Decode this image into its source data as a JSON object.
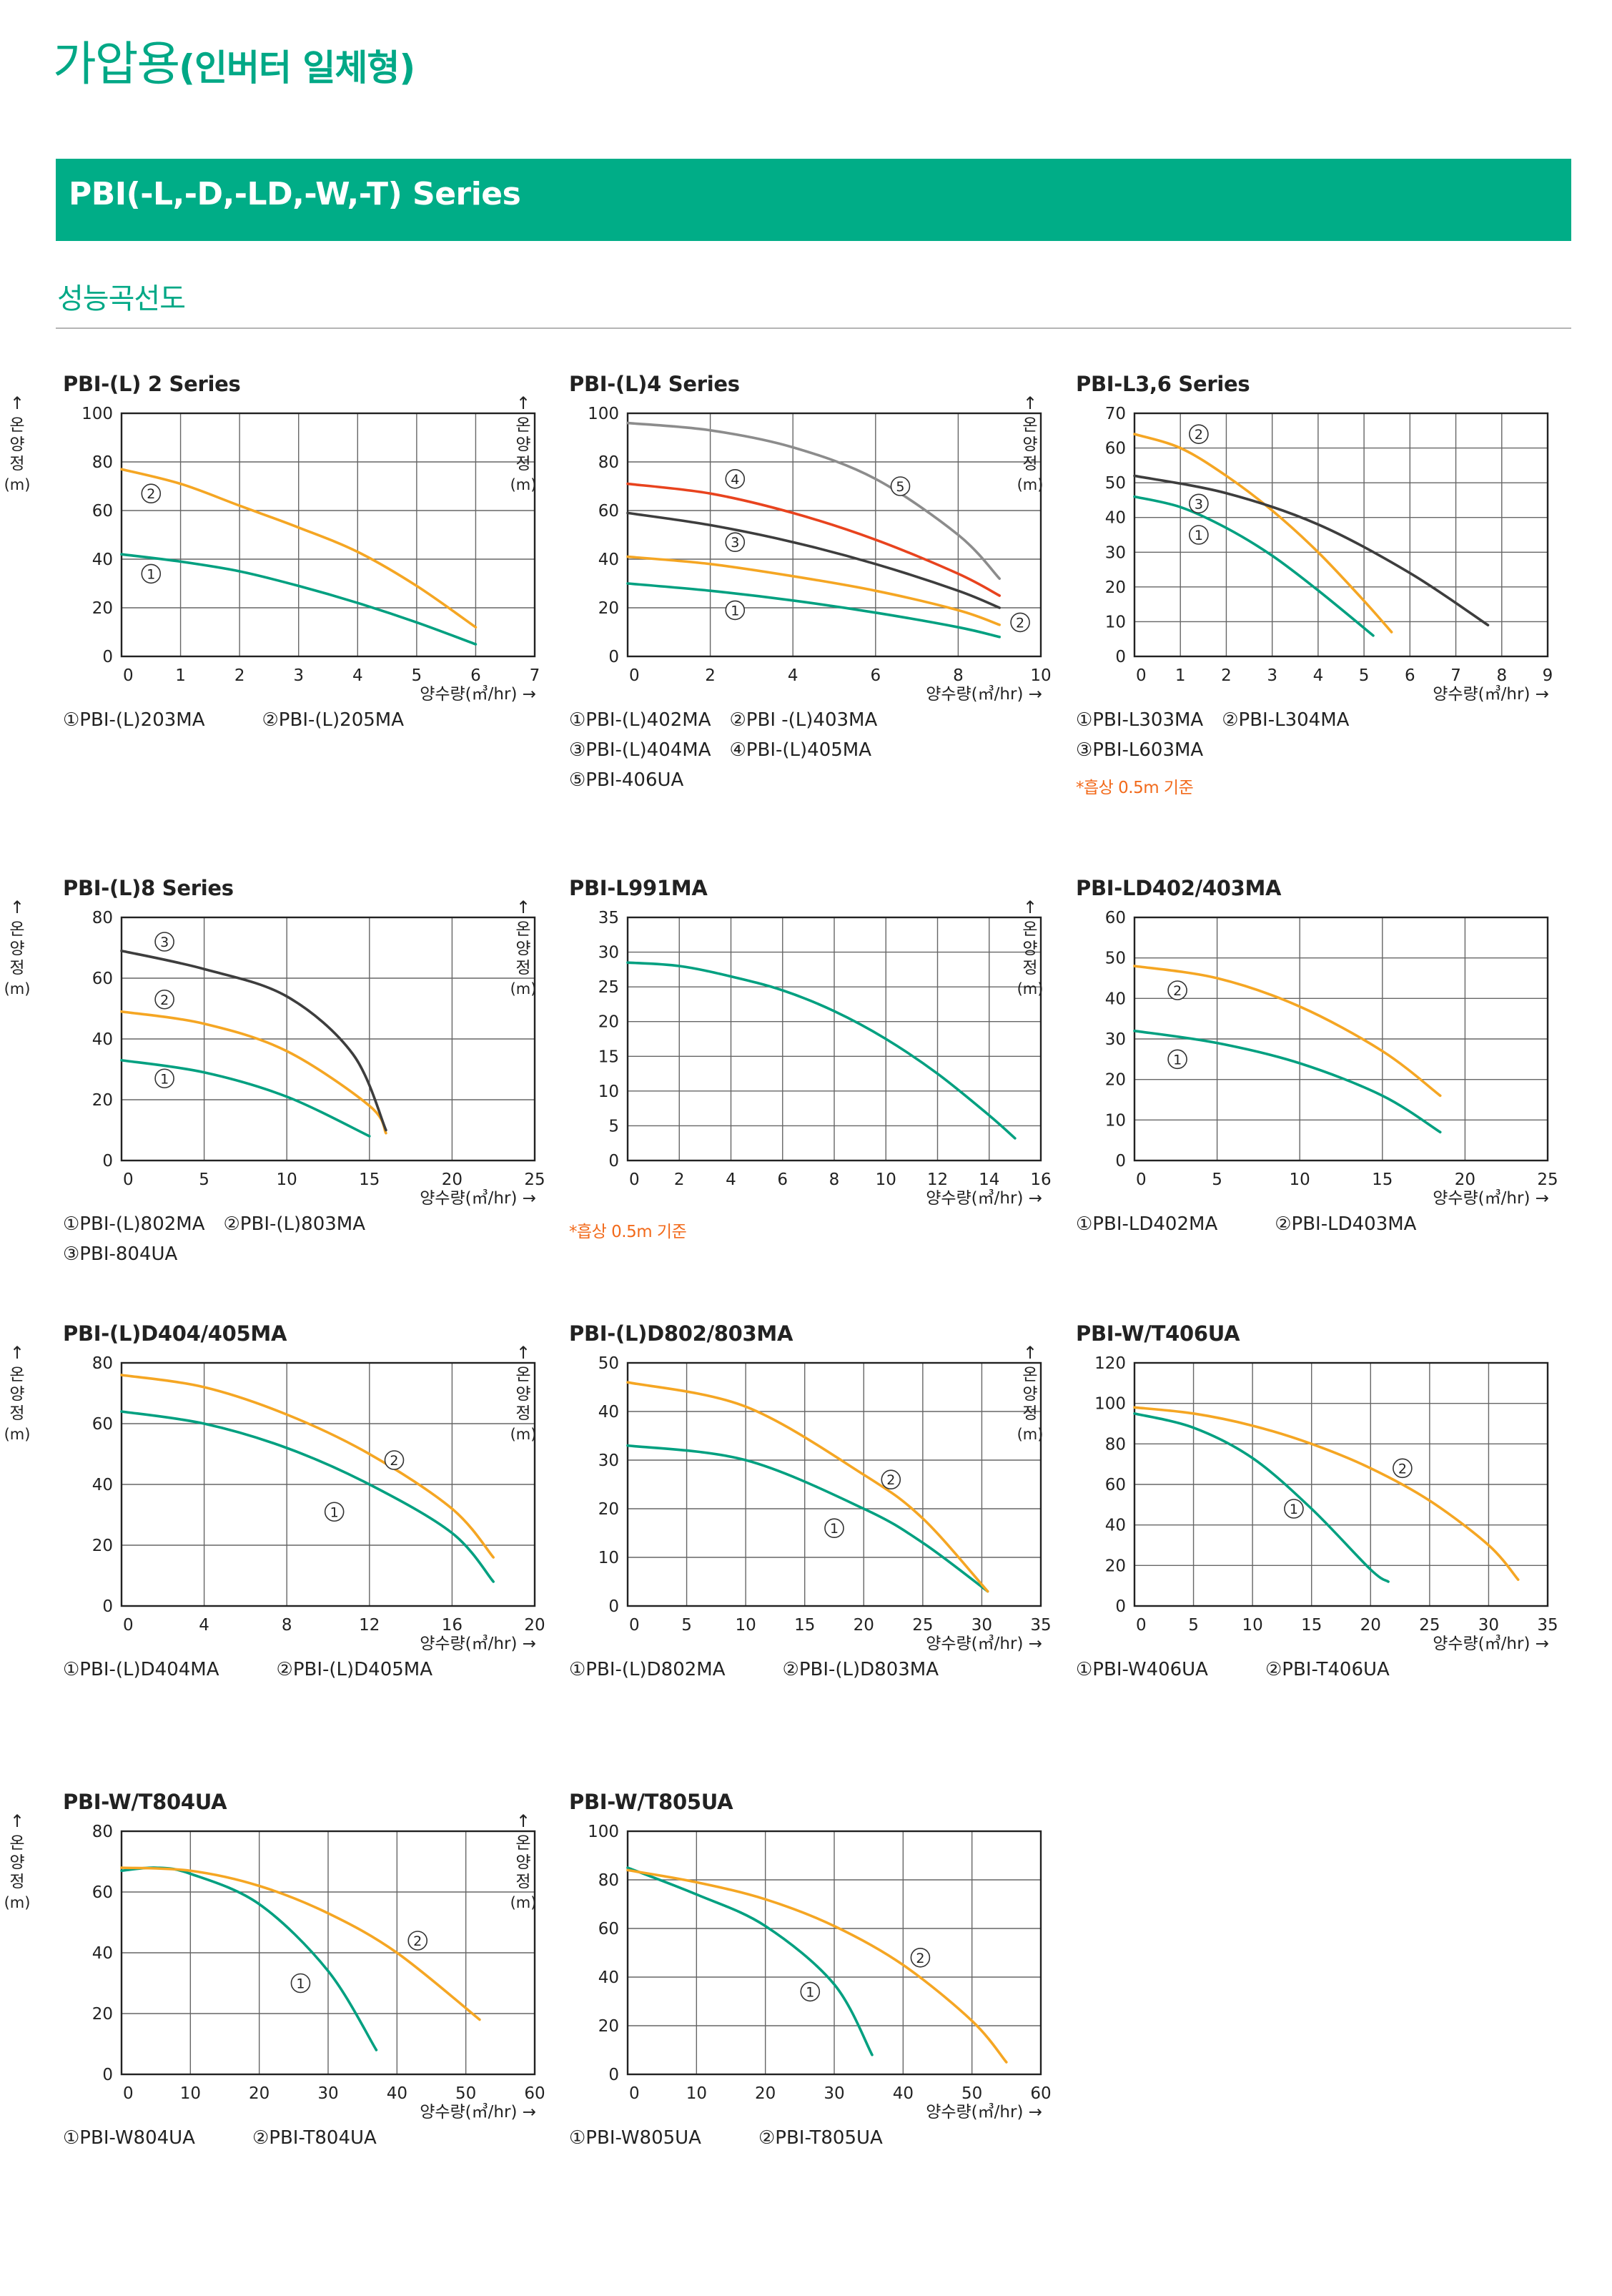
{
  "header": {
    "title_main": "가압용",
    "title_sub": "(인버터 일체형)",
    "series_banner": "PBI(-L,-D,-LD,-W,-T) Series",
    "section": "성능곡선도"
  },
  "axis_labels": {
    "y_arrow": "↑",
    "y_chars": [
      "온",
      "양",
      "정"
    ],
    "y_unit": "(m)",
    "x_label": "양수량(㎥/hr) →"
  },
  "colors": {
    "accent": "#00a886",
    "green_curve": "#00a080",
    "orange_curve": "#f5a623",
    "red_curve": "#e8431e",
    "dark_curve": "#3d3d3d",
    "gray_curve": "#8c8c8c",
    "note": "#f26a1b"
  },
  "chart_data": [
    {
      "type": "line",
      "title": "PBI-(L) 2 Series",
      "xlabel": "양수량(㎥/hr) →",
      "ylabel": "온양정 (m)",
      "xlim": [
        0,
        7
      ],
      "ylim": [
        0,
        100
      ],
      "grid": true,
      "xticks": [
        0,
        1,
        2,
        3,
        4,
        5,
        6,
        7
      ],
      "yticks": [
        0,
        20,
        40,
        60,
        80,
        100
      ],
      "series": [
        {
          "name": "PBI-(L)203MA",
          "marker": "1",
          "color": "green",
          "x": [
            0,
            1,
            2,
            3,
            4,
            5,
            6
          ],
          "y": [
            42,
            39,
            35,
            29,
            22,
            14,
            5
          ],
          "label_at": [
            0.5,
            34
          ]
        },
        {
          "name": "PBI-(L)205MA",
          "marker": "2",
          "color": "orange",
          "x": [
            0,
            1,
            2,
            3,
            4,
            5,
            6
          ],
          "y": [
            77,
            71,
            62,
            53,
            43,
            29,
            12
          ],
          "label_at": [
            0.5,
            67
          ]
        }
      ],
      "legend": [
        [
          "①PBI-(L)203MA",
          "②PBI-(L)205MA"
        ]
      ],
      "note": ""
    },
    {
      "type": "line",
      "title": "PBI-(L)4 Series",
      "xlabel": "양수량(㎥/hr) →",
      "ylabel": "온양정 (m)",
      "xlim": [
        0,
        10
      ],
      "ylim": [
        0,
        100
      ],
      "grid": true,
      "xticks": [
        0,
        2,
        4,
        6,
        8,
        10
      ],
      "yticks": [
        0,
        20,
        40,
        60,
        80,
        100
      ],
      "series": [
        {
          "name": "PBI-(L)402MA",
          "marker": "1",
          "color": "green",
          "x": [
            0,
            2,
            4,
            6,
            8,
            9
          ],
          "y": [
            30,
            27,
            23,
            18,
            12,
            8
          ],
          "label_at": [
            2.6,
            19
          ]
        },
        {
          "name": "PBI -(L)403MA",
          "marker": "2",
          "color": "orange",
          "x": [
            0,
            2,
            4,
            6,
            8,
            9
          ],
          "y": [
            41,
            38,
            33,
            27,
            19,
            13
          ],
          "label_at": [
            9.5,
            14
          ]
        },
        {
          "name": "PBI-(L)404MA",
          "marker": "3",
          "color": "dark",
          "x": [
            0,
            2,
            4,
            6,
            8,
            9
          ],
          "y": [
            59,
            54,
            47,
            38,
            27,
            20
          ],
          "label_at": [
            2.6,
            47
          ]
        },
        {
          "name": "PBI-(L)405MA",
          "marker": "4",
          "color": "red",
          "x": [
            0,
            2,
            4,
            6,
            8,
            9
          ],
          "y": [
            71,
            67,
            59,
            48,
            34,
            25
          ],
          "label_at": [
            2.6,
            73
          ]
        },
        {
          "name": "PBI-406UA",
          "marker": "5",
          "color": "gray",
          "x": [
            0,
            2,
            4,
            6,
            8,
            9
          ],
          "y": [
            96,
            93,
            86,
            73,
            50,
            32
          ],
          "label_at": [
            6.6,
            70
          ]
        }
      ],
      "legend": [
        [
          "①PBI-(L)402MA",
          "②PBI -(L)403MA"
        ],
        [
          "③PBI-(L)404MA",
          "④PBI-(L)405MA"
        ],
        [
          "⑤PBI-406UA"
        ]
      ],
      "note": ""
    },
    {
      "type": "line",
      "title": "PBI-L3,6 Series",
      "xlabel": "양수량(㎥/hr) →",
      "ylabel": "온양정 (m)",
      "xlim": [
        0,
        9
      ],
      "ylim": [
        0,
        70
      ],
      "grid": true,
      "xticks": [
        0,
        1,
        2,
        3,
        4,
        5,
        6,
        7,
        8,
        9
      ],
      "yticks": [
        0,
        10,
        20,
        30,
        40,
        50,
        60,
        70
      ],
      "series": [
        {
          "name": "PBI-L303MA",
          "marker": "1",
          "color": "green",
          "x": [
            0,
            1,
            2,
            3,
            4,
            5.2
          ],
          "y": [
            46,
            43,
            37,
            29,
            19,
            6
          ],
          "label_at": [
            1.4,
            35
          ]
        },
        {
          "name": "PBI-L304MA",
          "marker": "2",
          "color": "orange",
          "x": [
            0,
            1,
            2,
            3,
            4,
            5,
            5.6
          ],
          "y": [
            64,
            60,
            52,
            42,
            30,
            16,
            7
          ],
          "label_at": [
            1.4,
            64
          ]
        },
        {
          "name": "PBI-L603MA",
          "marker": "3",
          "color": "dark",
          "x": [
            0,
            2,
            4,
            6,
            7.7
          ],
          "y": [
            52,
            47,
            38,
            24,
            9
          ],
          "label_at": [
            1.4,
            44
          ]
        }
      ],
      "legend": [
        [
          "①PBI-L303MA",
          "②PBI-L304MA"
        ],
        [
          "③PBI-L603MA"
        ]
      ],
      "note": "*흡상 0.5m 기준"
    },
    {
      "type": "line",
      "title": "PBI-(L)8 Series",
      "xlabel": "양수량(㎥/hr) →",
      "ylabel": "온양정 (m)",
      "xlim": [
        0,
        25
      ],
      "ylim": [
        0,
        80
      ],
      "grid": true,
      "xticks": [
        0,
        5,
        10,
        15,
        20,
        25
      ],
      "yticks": [
        0,
        20,
        40,
        60,
        80
      ],
      "series": [
        {
          "name": "PBI-(L)802MA",
          "marker": "1",
          "color": "green",
          "x": [
            0,
            5,
            10,
            15
          ],
          "y": [
            33,
            29,
            21,
            8
          ],
          "label_at": [
            2.6,
            27
          ]
        },
        {
          "name": "PBI-(L)803MA",
          "marker": "2",
          "color": "orange",
          "x": [
            0,
            5,
            10,
            15,
            16
          ],
          "y": [
            49,
            45,
            36,
            18,
            9
          ],
          "label_at": [
            2.6,
            53
          ]
        },
        {
          "name": "PBI-804UA",
          "marker": "3",
          "color": "dark",
          "x": [
            0,
            5,
            10,
            14,
            16
          ],
          "y": [
            69,
            63,
            54,
            35,
            10
          ],
          "label_at": [
            2.6,
            72
          ]
        }
      ],
      "legend": [
        [
          "①PBI-(L)802MA",
          "②PBI-(L)803MA"
        ],
        [
          "③PBI-804UA"
        ]
      ],
      "note": ""
    },
    {
      "type": "line",
      "title": "PBI-L991MA",
      "xlabel": "양수량(㎥/hr) →",
      "ylabel": "온양정 (m)",
      "xlim": [
        0,
        16
      ],
      "ylim": [
        0,
        35
      ],
      "grid": true,
      "xticks": [
        0,
        2,
        4,
        6,
        8,
        10,
        12,
        14,
        16
      ],
      "yticks": [
        0,
        5,
        10,
        15,
        20,
        25,
        30,
        35
      ],
      "series": [
        {
          "name": "",
          "marker": "",
          "color": "green",
          "x": [
            0,
            2,
            4,
            6,
            8,
            10,
            12,
            14,
            15
          ],
          "y": [
            28.5,
            28,
            26.5,
            24.5,
            21.5,
            17.5,
            12.5,
            6.5,
            3.2
          ],
          "label_at": null
        }
      ],
      "legend": [],
      "note": "*흡상 0.5m 기준"
    },
    {
      "type": "line",
      "title": "PBI-LD402/403MA",
      "xlabel": "양수량(㎥/hr) →",
      "ylabel": "온양정 (m)",
      "xlim": [
        0,
        25
      ],
      "ylim": [
        0,
        60
      ],
      "grid": true,
      "xticks": [
        0,
        5,
        10,
        15,
        20,
        25
      ],
      "yticks": [
        0,
        10,
        20,
        30,
        40,
        50,
        60
      ],
      "series": [
        {
          "name": "PBI-LD402MA",
          "marker": "1",
          "color": "green",
          "x": [
            0,
            5,
            10,
            15,
            18.5
          ],
          "y": [
            32,
            29,
            24,
            16,
            7
          ],
          "label_at": [
            2.6,
            25
          ]
        },
        {
          "name": "PBI-LD403MA",
          "marker": "2",
          "color": "orange",
          "x": [
            0,
            5,
            10,
            15,
            18.5
          ],
          "y": [
            48,
            45,
            38,
            27,
            16
          ],
          "label_at": [
            2.6,
            42
          ]
        }
      ],
      "legend": [
        [
          "①PBI-LD402MA",
          "②PBI-LD403MA"
        ]
      ],
      "note": ""
    },
    {
      "type": "line",
      "title": "PBI-(L)D404/405MA",
      "xlabel": "양수량(㎥/hr) →",
      "ylabel": "온양정 (m)",
      "xlim": [
        0,
        20
      ],
      "ylim": [
        0,
        80
      ],
      "grid": true,
      "xticks": [
        0,
        4,
        8,
        12,
        16,
        20
      ],
      "yticks": [
        0,
        20,
        40,
        60,
        80
      ],
      "series": [
        {
          "name": "PBI-(L)D404MA",
          "marker": "1",
          "color": "green",
          "x": [
            0,
            4,
            8,
            12,
            16,
            18
          ],
          "y": [
            64,
            60,
            52,
            40,
            24,
            8
          ],
          "label_at": [
            10.3,
            31
          ]
        },
        {
          "name": "PBI-(L)D405MA",
          "marker": "2",
          "color": "orange",
          "x": [
            0,
            4,
            8,
            12,
            16,
            18
          ],
          "y": [
            76,
            72,
            63,
            50,
            32,
            16
          ],
          "label_at": [
            13.2,
            48
          ]
        }
      ],
      "legend": [
        [
          "①PBI-(L)D404MA",
          "②PBI-(L)D405MA"
        ]
      ],
      "note": ""
    },
    {
      "type": "line",
      "title": "PBI-(L)D802/803MA",
      "xlabel": "양수량(㎥/hr) →",
      "ylabel": "온양정 (m)",
      "xlim": [
        0,
        35
      ],
      "ylim": [
        0,
        50
      ],
      "grid": true,
      "xticks": [
        0,
        5,
        10,
        15,
        20,
        25,
        30,
        35
      ],
      "yticks": [
        0,
        10,
        20,
        30,
        40,
        50
      ],
      "series": [
        {
          "name": "PBI-(L)D802MA",
          "marker": "1",
          "color": "green",
          "x": [
            0,
            10,
            20,
            25,
            30.5
          ],
          "y": [
            33,
            30,
            20,
            13,
            3
          ],
          "label_at": [
            17.5,
            16
          ]
        },
        {
          "name": "PBI-(L)D803MA",
          "marker": "2",
          "color": "orange",
          "x": [
            0,
            10,
            20,
            25,
            30.5
          ],
          "y": [
            46,
            41,
            27,
            18,
            3
          ],
          "label_at": [
            22.3,
            26
          ]
        }
      ],
      "legend": [
        [
          "①PBI-(L)D802MA",
          "②PBI-(L)D803MA"
        ]
      ],
      "note": ""
    },
    {
      "type": "line",
      "title": "PBI-W/T406UA",
      "xlabel": "양수량(㎥/hr) →",
      "ylabel": "온양정 (m)",
      "xlim": [
        0,
        35
      ],
      "ylim": [
        0,
        120
      ],
      "grid": true,
      "xticks": [
        0,
        5,
        10,
        15,
        20,
        25,
        30,
        35
      ],
      "yticks": [
        0,
        20,
        40,
        60,
        80,
        100,
        120
      ],
      "series": [
        {
          "name": "PBI-W406UA",
          "marker": "1",
          "color": "green",
          "x": [
            0,
            5,
            10,
            15,
            20,
            21.5
          ],
          "y": [
            95,
            88,
            73,
            48,
            18,
            12
          ],
          "label_at": [
            13.5,
            48
          ]
        },
        {
          "name": "PBI-T406UA",
          "marker": "2",
          "color": "orange",
          "x": [
            0,
            5,
            10,
            15,
            20,
            25,
            30,
            32.5
          ],
          "y": [
            98,
            95,
            89,
            80,
            68,
            52,
            30,
            13
          ],
          "label_at": [
            22.7,
            68
          ]
        }
      ],
      "legend": [
        [
          "①PBI-W406UA",
          "②PBI-T406UA"
        ]
      ],
      "note": ""
    },
    {
      "type": "line",
      "title": "PBI-W/T804UA",
      "xlabel": "양수량(㎥/hr) →",
      "ylabel": "온양정 (m)",
      "xlim": [
        0,
        60
      ],
      "ylim": [
        0,
        80
      ],
      "grid": true,
      "xticks": [
        0,
        10,
        20,
        30,
        40,
        50,
        60
      ],
      "yticks": [
        0,
        20,
        40,
        60,
        80
      ],
      "series": [
        {
          "name": "PBI-W804UA",
          "marker": "1",
          "color": "green",
          "x": [
            0,
            5,
            10,
            20,
            30,
            37
          ],
          "y": [
            67,
            68,
            66,
            56,
            34,
            8
          ],
          "label_at": [
            26,
            30
          ]
        },
        {
          "name": "PBI-T804UA",
          "marker": "2",
          "color": "orange",
          "x": [
            0,
            10,
            20,
            30,
            40,
            52
          ],
          "y": [
            68,
            67,
            62,
            53,
            40,
            18
          ],
          "label_at": [
            43,
            44
          ]
        }
      ],
      "legend": [
        [
          "①PBI-W804UA",
          "②PBI-T804UA"
        ]
      ],
      "note": ""
    },
    {
      "type": "line",
      "title": "PBI-W/T805UA",
      "xlabel": "양수량(㎥/hr) →",
      "ylabel": "온양정 (m)",
      "xlim": [
        0,
        60
      ],
      "ylim": [
        0,
        100
      ],
      "grid": true,
      "xticks": [
        0,
        10,
        20,
        30,
        40,
        50,
        60
      ],
      "yticks": [
        0,
        20,
        40,
        60,
        80,
        100
      ],
      "series": [
        {
          "name": "PBI-W805UA",
          "marker": "1",
          "color": "green",
          "x": [
            0,
            10,
            20,
            30,
            35.5
          ],
          "y": [
            85,
            74,
            61,
            37,
            8
          ],
          "label_at": [
            26.5,
            34
          ]
        },
        {
          "name": "PBI-T805UA",
          "marker": "2",
          "color": "orange",
          "x": [
            0,
            10,
            20,
            30,
            40,
            50,
            55
          ],
          "y": [
            84,
            79,
            72,
            61,
            45,
            22,
            5
          ],
          "label_at": [
            42.5,
            48
          ]
        }
      ],
      "legend": [
        [
          "①PBI-W805UA",
          "②PBI-T805UA"
        ]
      ],
      "note": ""
    }
  ]
}
